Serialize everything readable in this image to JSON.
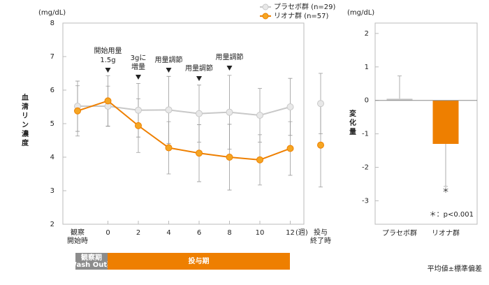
{
  "chart_data": [
    {
      "type": "line",
      "y_unit": "(mg/dL)",
      "y_label": "血清リン濃度",
      "x_unit": "(週)",
      "categories": [
        "観察\n開始時",
        "0",
        "2",
        "4",
        "6",
        "8",
        "10",
        "12",
        "投与\n終了時"
      ],
      "series": [
        {
          "name": "プラセボ群 (n=29)",
          "color": "#c8c8c8",
          "marker": "#e8e8e8",
          "values": [
            5.52,
            5.52,
            5.4,
            5.41,
            5.3,
            5.34,
            5.25,
            5.5,
            5.6
          ],
          "errors": [
            0.75,
            0.6,
            0.8,
            1.0,
            0.85,
            1.1,
            0.8,
            0.85,
            0.9
          ]
        },
        {
          "name": "リオナ群 (n=57)",
          "color": "#ee7f00",
          "marker": "#f5a623",
          "values": [
            5.38,
            5.68,
            4.94,
            4.28,
            4.12,
            4.0,
            3.92,
            4.26,
            4.36
          ],
          "errors": [
            0.75,
            0.75,
            0.8,
            0.78,
            0.85,
            0.98,
            0.75,
            0.8,
            1.25
          ]
        }
      ],
      "ylim": [
        2,
        8
      ],
      "yticks": [
        2,
        3,
        4,
        5,
        6,
        7,
        8
      ],
      "annotations": [
        {
          "text": "開始用量\n1.5g",
          "category": "0"
        },
        {
          "text": "3gに\n増量",
          "category": "2"
        },
        {
          "text": "用量調節",
          "category": "4"
        },
        {
          "text": "用量調節",
          "category": "6"
        },
        {
          "text": "用量調節",
          "category": "8"
        }
      ],
      "periods": [
        {
          "label": "観察期\n(Wash Out期)",
          "color": "#8c8c8c"
        },
        {
          "label": "投与期",
          "color": "#ee7f00"
        }
      ]
    },
    {
      "type": "bar",
      "y_unit": "(mg/dL)",
      "y_label": "変化量",
      "categories": [
        "プラセボ群",
        "リオナ群"
      ],
      "colors": [
        "#c8c8c8",
        "#ee7f00"
      ],
      "values": [
        0.05,
        -1.3
      ],
      "errors": [
        0.68,
        1.27
      ],
      "ylim": [
        -3.7,
        2.31
      ],
      "yticks": [
        -3,
        -2,
        -1,
        0,
        1,
        2
      ],
      "significance": "＊",
      "note": "＊：p<0.001"
    }
  ],
  "footnote": "平均値±標準偏差"
}
